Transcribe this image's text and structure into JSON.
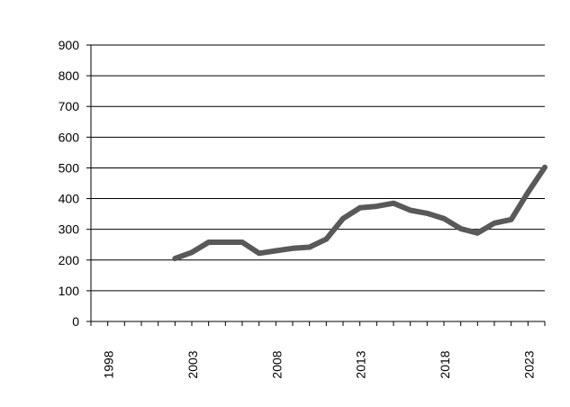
{
  "chart_data": {
    "type": "line",
    "title": "",
    "xlabel": "",
    "ylabel": "",
    "xlim": [
      1997,
      2024
    ],
    "ylim": [
      0,
      900
    ],
    "y_ticks": [
      "0",
      "100",
      "200",
      "300",
      "400",
      "500",
      "600",
      "700",
      "800",
      "900"
    ],
    "x_ticks": [
      "1998",
      "2003",
      "2008",
      "2013",
      "2018",
      "2023"
    ],
    "grid": true,
    "legend": "none",
    "series": [
      {
        "color": "#595959",
        "x": [
          2002,
          2003,
          2004,
          2005,
          2006,
          2007,
          2008,
          2009,
          2010,
          2011,
          2012,
          2013,
          2014,
          2015,
          2016,
          2017,
          2018,
          2019,
          2020,
          2021,
          2022,
          2023,
          2024
        ],
        "values": [
          205,
          225,
          258,
          258,
          258,
          222,
          230,
          238,
          242,
          268,
          335,
          370,
          375,
          385,
          362,
          352,
          335,
          302,
          288,
          320,
          332,
          420,
          502
        ]
      }
    ]
  }
}
